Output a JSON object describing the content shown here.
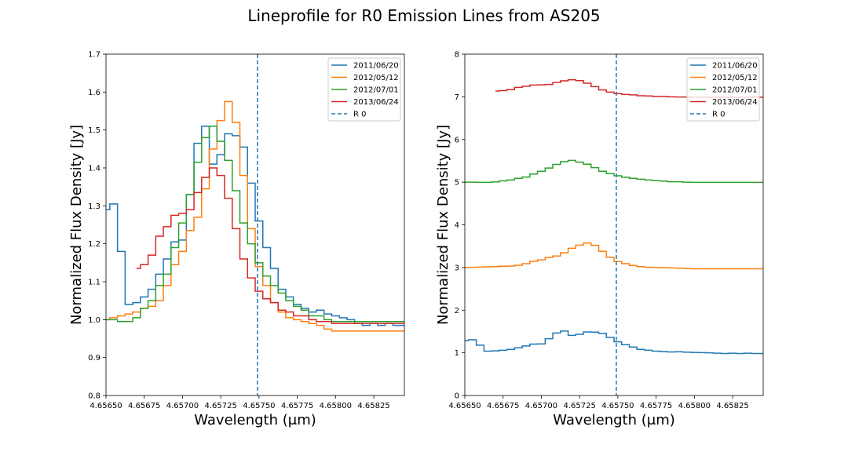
{
  "title": "Lineprofile for R0 Emission Lines from AS205",
  "colors": {
    "2011/06/20": "#1f77b4",
    "2012/05/12": "#ff7f0e",
    "2012/07/01": "#2ca02c",
    "2013/06/24": "#d62728",
    "R0": "#1f77b4"
  },
  "chart_data": [
    {
      "type": "line",
      "drawstyle": "steps-mid",
      "xlabel": "Wavelength (μm)",
      "ylabel": "Normalized Flux Density [Jy]",
      "xlim": [
        4.6565,
        4.65845
      ],
      "ylim": [
        0.8,
        1.7
      ],
      "xticks": [
        4.6565,
        4.65675,
        4.657,
        4.65725,
        4.6575,
        4.65775,
        4.658,
        4.65825
      ],
      "xtick_labels": [
        "4.65650",
        "4.65675",
        "4.65700",
        "4.65725",
        "4.65750",
        "4.65775",
        "4.65800",
        "4.65825"
      ],
      "yticks": [
        0.8,
        0.9,
        1.0,
        1.1,
        1.2,
        1.3,
        1.4,
        1.5,
        1.6,
        1.7
      ],
      "ytick_labels": [
        "0.8",
        "0.9",
        "1.0",
        "1.1",
        "1.2",
        "1.3",
        "1.4",
        "1.5",
        "1.6",
        "1.7"
      ],
      "legend": "top-right",
      "grid": false,
      "vline": {
        "name": "R  0",
        "x": 4.65749,
        "style": "dashed"
      },
      "series": [
        {
          "name": "2011/06/20",
          "x": [
            4.6565,
            4.65655,
            4.6566,
            4.65665,
            4.6567,
            4.65675,
            4.6568,
            4.65685,
            4.6569,
            4.65695,
            4.657,
            4.65705,
            4.6571,
            4.65715,
            4.6572,
            4.65725,
            4.6573,
            4.65735,
            4.6574,
            4.65745,
            4.6575,
            4.65755,
            4.6576,
            4.65765,
            4.6577,
            4.65775,
            4.6578,
            4.65785,
            4.6579,
            4.65795,
            4.658,
            4.65805,
            4.6581,
            4.65815,
            4.6582,
            4.65825,
            4.6583,
            4.65835,
            4.6584,
            4.65845
          ],
          "y": [
            1.29,
            1.305,
            1.18,
            1.04,
            1.045,
            1.06,
            1.08,
            1.12,
            1.16,
            1.205,
            1.21,
            1.33,
            1.465,
            1.51,
            1.41,
            1.435,
            1.49,
            1.485,
            1.455,
            1.36,
            1.26,
            1.19,
            1.135,
            1.08,
            1.06,
            1.04,
            1.03,
            1.02,
            1.025,
            1.015,
            1.01,
            1.005,
            1.0,
            0.99,
            0.985,
            0.99,
            0.985,
            0.99,
            0.985,
            0.985
          ]
        },
        {
          "name": "2012/05/12",
          "x": [
            4.6565,
            4.65655,
            4.6566,
            4.65665,
            4.6567,
            4.65675,
            4.6568,
            4.65685,
            4.6569,
            4.65695,
            4.657,
            4.65705,
            4.6571,
            4.65715,
            4.6572,
            4.65725,
            4.6573,
            4.65735,
            4.6574,
            4.65745,
            4.6575,
            4.65755,
            4.6576,
            4.65765,
            4.6577,
            4.65775,
            4.6578,
            4.65785,
            4.6579,
            4.65795,
            4.658,
            4.65805,
            4.6581,
            4.65815,
            4.6582,
            4.65825,
            4.6583,
            4.65835,
            4.6584,
            4.65845
          ],
          "y": [
            1.0,
            1.005,
            1.01,
            1.015,
            1.02,
            1.03,
            1.035,
            1.05,
            1.09,
            1.145,
            1.18,
            1.235,
            1.27,
            1.345,
            1.45,
            1.525,
            1.575,
            1.52,
            1.38,
            1.24,
            1.14,
            1.09,
            1.045,
            1.02,
            1.005,
            1.0,
            0.995,
            0.99,
            0.985,
            0.975,
            0.97,
            0.97,
            0.97,
            0.97,
            0.97,
            0.97,
            0.97,
            0.97,
            0.97,
            0.97
          ]
        },
        {
          "name": "2012/07/01",
          "x": [
            4.6565,
            4.65655,
            4.6566,
            4.65665,
            4.6567,
            4.65675,
            4.6568,
            4.65685,
            4.6569,
            4.65695,
            4.657,
            4.65705,
            4.6571,
            4.65715,
            4.6572,
            4.65725,
            4.6573,
            4.65735,
            4.6574,
            4.65745,
            4.6575,
            4.65755,
            4.6576,
            4.65765,
            4.6577,
            4.65775,
            4.6578,
            4.65785,
            4.6579,
            4.65795,
            4.658,
            4.65805,
            4.6581,
            4.65815,
            4.6582,
            4.65825,
            4.6583,
            4.65835,
            4.6584,
            4.65845
          ],
          "y": [
            1.0,
            1.0,
            0.995,
            0.995,
            1.005,
            1.03,
            1.05,
            1.09,
            1.12,
            1.19,
            1.255,
            1.33,
            1.415,
            1.48,
            1.51,
            1.47,
            1.42,
            1.34,
            1.255,
            1.2,
            1.15,
            1.115,
            1.09,
            1.07,
            1.05,
            1.035,
            1.025,
            1.01,
            1.01,
            1.0,
            0.995,
            0.995,
            0.995,
            0.995,
            0.995,
            0.995,
            0.995,
            0.995,
            0.995,
            0.995
          ]
        },
        {
          "name": "2013/06/24",
          "x": [
            4.6567,
            4.65675,
            4.6568,
            4.65685,
            4.6569,
            4.65695,
            4.657,
            4.65705,
            4.6571,
            4.65715,
            4.6572,
            4.65725,
            4.6573,
            4.65735,
            4.6574,
            4.65745,
            4.6575,
            4.65755,
            4.6576,
            4.65765,
            4.6577,
            4.65775,
            4.6578,
            4.65785,
            4.6579,
            4.65795,
            4.658,
            4.65805,
            4.6581,
            4.65815,
            4.6582,
            4.65825,
            4.6583,
            4.65835,
            4.6584,
            4.65845
          ],
          "y": [
            1.135,
            1.145,
            1.17,
            1.22,
            1.245,
            1.275,
            1.28,
            1.29,
            1.335,
            1.375,
            1.4,
            1.38,
            1.32,
            1.24,
            1.16,
            1.11,
            1.075,
            1.055,
            1.045,
            1.025,
            1.02,
            1.01,
            1.01,
            1.0,
            0.995,
            0.995,
            0.99,
            0.99,
            0.99,
            0.99,
            0.99,
            0.99,
            0.99,
            0.99,
            0.99,
            0.99
          ]
        }
      ]
    },
    {
      "type": "line",
      "drawstyle": "steps-mid",
      "xlabel": "Wavelength (μm)",
      "ylabel": "Normalized Flux Density [Jy]",
      "xlim": [
        4.6565,
        4.65845
      ],
      "ylim": [
        0,
        8
      ],
      "xticks": [
        4.6565,
        4.65675,
        4.657,
        4.65725,
        4.6575,
        4.65775,
        4.658,
        4.65825
      ],
      "xtick_labels": [
        "4.65650",
        "4.65675",
        "4.65700",
        "4.65725",
        "4.65750",
        "4.65775",
        "4.65800",
        "4.65825"
      ],
      "yticks": [
        0,
        1,
        2,
        3,
        4,
        5,
        6,
        7,
        8
      ],
      "ytick_labels": [
        "0",
        "1",
        "2",
        "3",
        "4",
        "5",
        "6",
        "7",
        "8"
      ],
      "legend": "top-right",
      "grid": false,
      "vline": {
        "name": "R  0",
        "x": 4.65749,
        "style": "dashed"
      },
      "series": [
        {
          "name": "2011/06/20",
          "x": [
            4.6565,
            4.65655,
            4.6566,
            4.65665,
            4.6567,
            4.65675,
            4.6568,
            4.65685,
            4.6569,
            4.65695,
            4.657,
            4.65705,
            4.6571,
            4.65715,
            4.6572,
            4.65725,
            4.6573,
            4.65735,
            4.6574,
            4.65745,
            4.6575,
            4.65755,
            4.6576,
            4.65765,
            4.6577,
            4.65775,
            4.6578,
            4.65785,
            4.6579,
            4.65795,
            4.658,
            4.65805,
            4.6581,
            4.65815,
            4.6582,
            4.65825,
            4.6583,
            4.65835,
            4.6584,
            4.65845
          ],
          "y": [
            1.29,
            1.305,
            1.18,
            1.04,
            1.045,
            1.06,
            1.08,
            1.12,
            1.16,
            1.205,
            1.21,
            1.33,
            1.465,
            1.51,
            1.41,
            1.435,
            1.49,
            1.485,
            1.455,
            1.36,
            1.26,
            1.19,
            1.135,
            1.08,
            1.06,
            1.04,
            1.03,
            1.02,
            1.025,
            1.015,
            1.01,
            1.005,
            1.0,
            0.99,
            0.985,
            0.99,
            0.985,
            0.99,
            0.985,
            0.985
          ]
        },
        {
          "name": "2012/05/12",
          "x": [
            4.6565,
            4.65655,
            4.6566,
            4.65665,
            4.6567,
            4.65675,
            4.6568,
            4.65685,
            4.6569,
            4.65695,
            4.657,
            4.65705,
            4.6571,
            4.65715,
            4.6572,
            4.65725,
            4.6573,
            4.65735,
            4.6574,
            4.65745,
            4.6575,
            4.65755,
            4.6576,
            4.65765,
            4.6577,
            4.65775,
            4.6578,
            4.65785,
            4.6579,
            4.65795,
            4.658,
            4.65805,
            4.6581,
            4.65815,
            4.6582,
            4.65825,
            4.6583,
            4.65835,
            4.6584,
            4.65845
          ],
          "y": [
            3.0,
            3.005,
            3.01,
            3.015,
            3.02,
            3.03,
            3.035,
            3.05,
            3.09,
            3.145,
            3.18,
            3.235,
            3.27,
            3.345,
            3.45,
            3.525,
            3.575,
            3.52,
            3.38,
            3.24,
            3.14,
            3.09,
            3.045,
            3.02,
            3.005,
            3.0,
            2.995,
            2.99,
            2.985,
            2.975,
            2.97,
            2.97,
            2.97,
            2.97,
            2.97,
            2.97,
            2.97,
            2.97,
            2.97,
            2.97
          ]
        },
        {
          "name": "2012/07/01",
          "x": [
            4.6565,
            4.65655,
            4.6566,
            4.65665,
            4.6567,
            4.65675,
            4.6568,
            4.65685,
            4.6569,
            4.65695,
            4.657,
            4.65705,
            4.6571,
            4.65715,
            4.6572,
            4.65725,
            4.6573,
            4.65735,
            4.6574,
            4.65745,
            4.6575,
            4.65755,
            4.6576,
            4.65765,
            4.6577,
            4.65775,
            4.6578,
            4.65785,
            4.6579,
            4.65795,
            4.658,
            4.65805,
            4.6581,
            4.65815,
            4.6582,
            4.65825,
            4.6583,
            4.65835,
            4.6584,
            4.65845
          ],
          "y": [
            5.0,
            5.0,
            4.995,
            4.995,
            5.005,
            5.03,
            5.05,
            5.09,
            5.12,
            5.19,
            5.255,
            5.33,
            5.415,
            5.48,
            5.51,
            5.47,
            5.42,
            5.34,
            5.255,
            5.2,
            5.15,
            5.115,
            5.09,
            5.07,
            5.05,
            5.035,
            5.025,
            5.01,
            5.01,
            5.0,
            4.995,
            4.995,
            4.995,
            4.995,
            4.995,
            4.995,
            4.995,
            4.995,
            4.995,
            4.995
          ]
        },
        {
          "name": "2013/06/24",
          "x": [
            4.6567,
            4.65675,
            4.6568,
            4.65685,
            4.6569,
            4.65695,
            4.657,
            4.65705,
            4.6571,
            4.65715,
            4.6572,
            4.65725,
            4.6573,
            4.65735,
            4.6574,
            4.65745,
            4.6575,
            4.65755,
            4.6576,
            4.65765,
            4.6577,
            4.65775,
            4.6578,
            4.65785,
            4.6579,
            4.65795,
            4.658,
            4.65805,
            4.6581,
            4.65815,
            4.6582,
            4.65825,
            4.6583,
            4.65835,
            4.6584,
            4.65845
          ],
          "y": [
            7.135,
            7.145,
            7.17,
            7.22,
            7.245,
            7.275,
            7.28,
            7.29,
            7.335,
            7.375,
            7.4,
            7.38,
            7.32,
            7.24,
            7.16,
            7.11,
            7.075,
            7.055,
            7.045,
            7.025,
            7.02,
            7.01,
            7.01,
            7.0,
            6.995,
            6.995,
            6.99,
            6.99,
            6.99,
            6.99,
            6.99,
            6.99,
            6.99,
            6.99,
            6.99,
            6.99
          ]
        }
      ]
    }
  ]
}
